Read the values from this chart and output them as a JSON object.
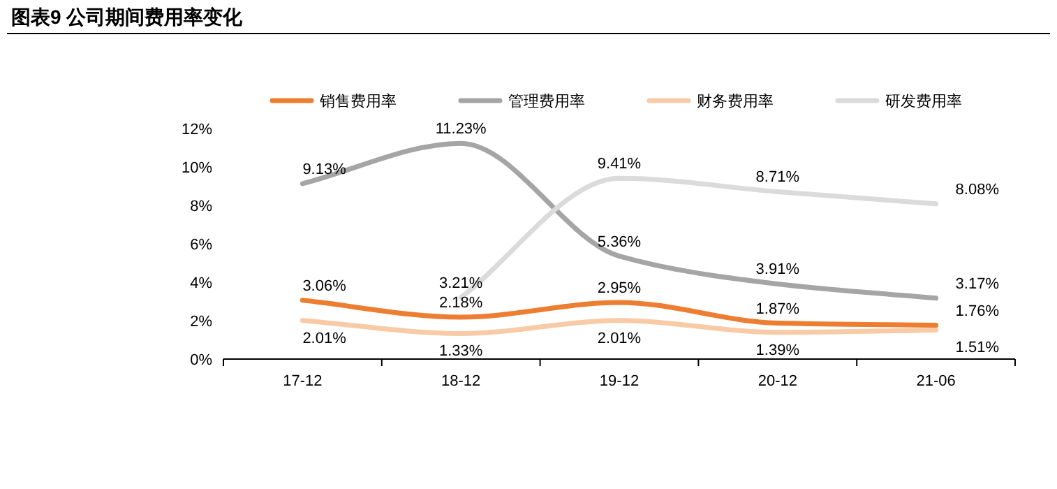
{
  "chart_data": {
    "type": "line",
    "title": "图表9    公司期间费用率变化",
    "categories": [
      "17-12",
      "18-12",
      "19-12",
      "20-12",
      "21-06"
    ],
    "series": [
      {
        "name": "销售费用率",
        "color": "#ed7d31",
        "values": [
          3.06,
          2.18,
          2.95,
          1.87,
          1.76
        ],
        "value_labels": [
          "3.06%",
          "2.18%",
          "2.95%",
          "1.87%",
          "1.76%"
        ]
      },
      {
        "name": "管理费用率",
        "color": "#a5a5a5",
        "values": [
          9.13,
          11.23,
          5.36,
          3.91,
          3.17
        ],
        "value_labels": [
          "9.13%",
          "11.23%",
          "5.36%",
          "3.91%",
          "3.17%"
        ]
      },
      {
        "name": "财务费用率",
        "color": "#f8cba6",
        "values": [
          2.01,
          1.33,
          2.01,
          1.39,
          1.51
        ],
        "value_labels": [
          "2.01%",
          "1.33%",
          "2.01%",
          "1.39%",
          "1.51%"
        ]
      },
      {
        "name": "研发费用率",
        "color": "#dbdbdb",
        "values": [
          null,
          3.21,
          9.41,
          8.71,
          8.08
        ],
        "value_labels": [
          null,
          "3.21%",
          "9.41%",
          "8.71%",
          "8.08%"
        ]
      }
    ],
    "ylim": [
      0,
      12
    ],
    "yticks": [
      {
        "value": 0,
        "label": "0%"
      },
      {
        "value": 2,
        "label": "2%"
      },
      {
        "value": 4,
        "label": "4%"
      },
      {
        "value": 6,
        "label": "6%"
      },
      {
        "value": 8,
        "label": "8%"
      },
      {
        "value": 10,
        "label": "10%"
      },
      {
        "value": 12,
        "label": "12%"
      }
    ],
    "legend": "top"
  }
}
